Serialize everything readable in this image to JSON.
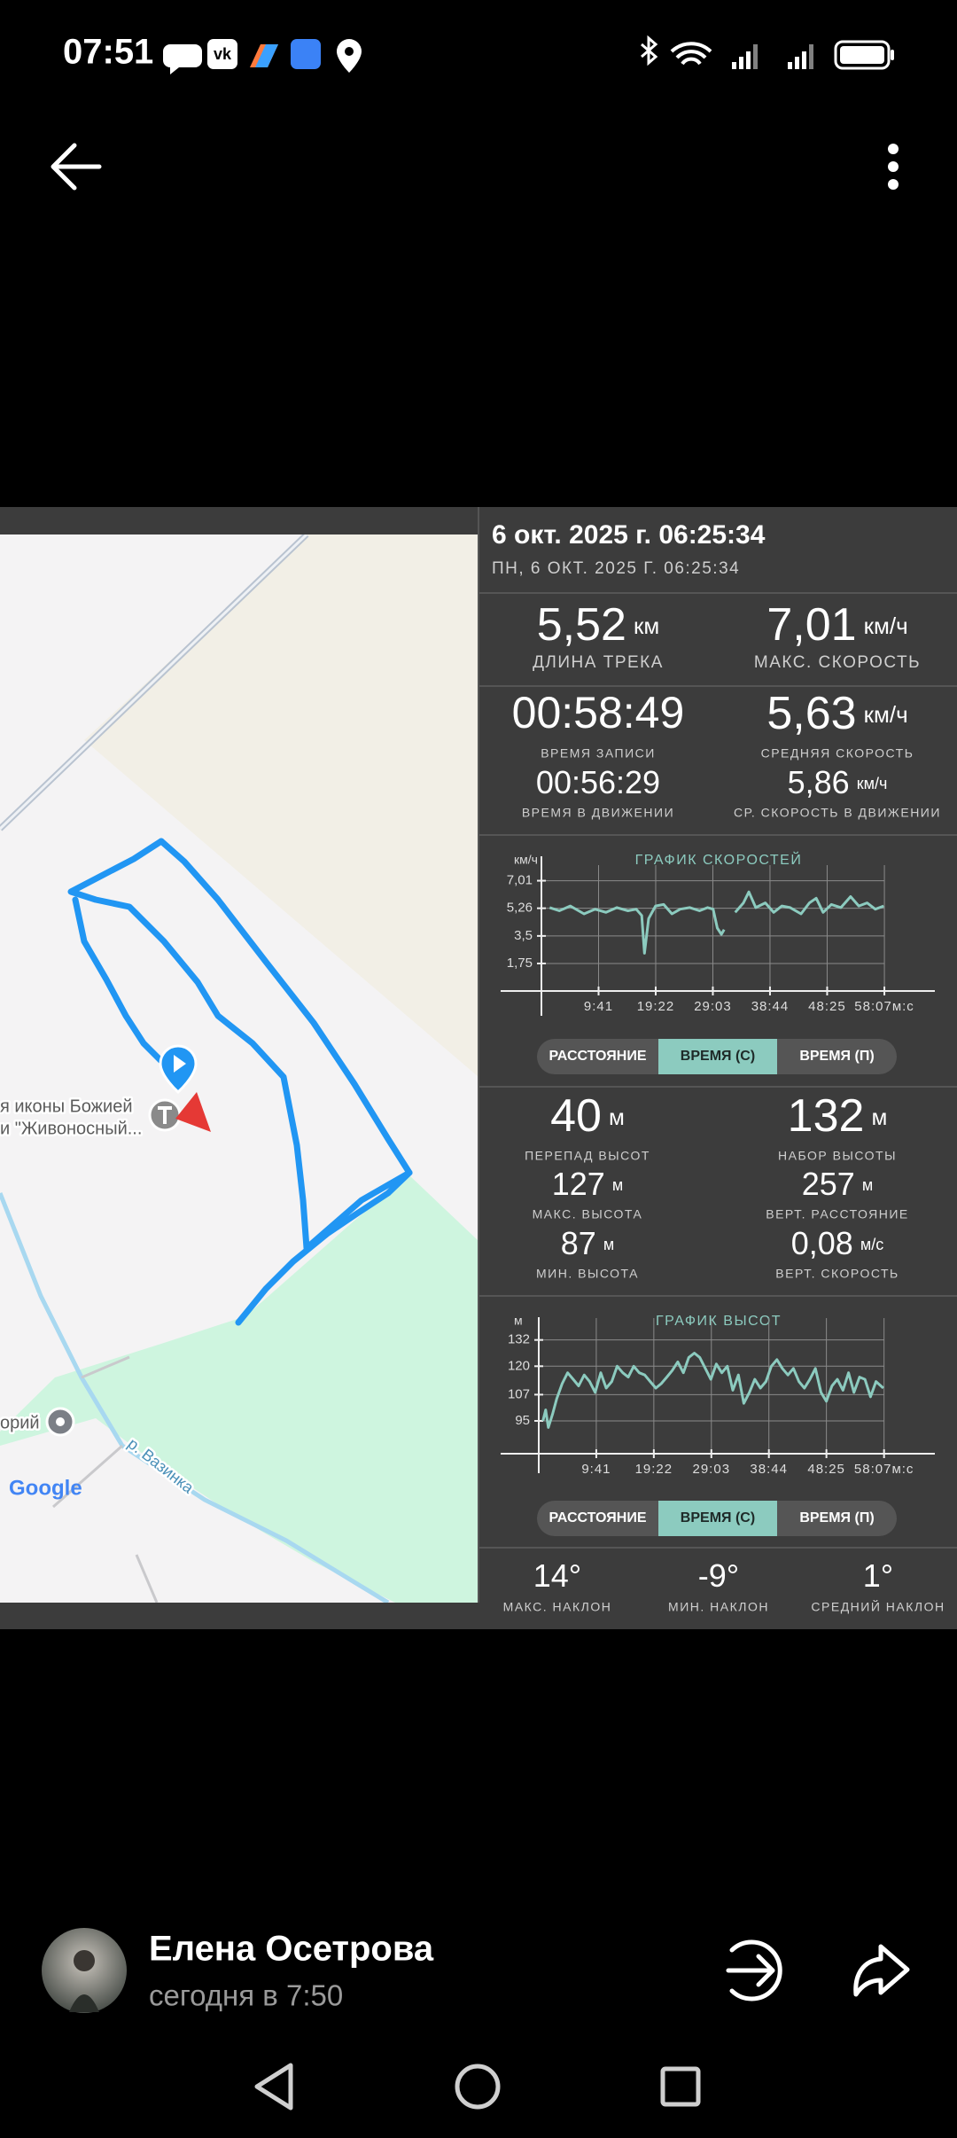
{
  "status_bar": {
    "time": "07:51"
  },
  "image": {
    "map": {
      "poi_label_lines": [
        "я иконы Божией",
        "и \"Живоносный..."
      ],
      "poi2_label": "орий",
      "river_label": "р. Вазинка",
      "logo": "Google"
    },
    "panel": {
      "datetime_title": "6 окт. 2025 г. 06:25:34",
      "datetime_subtitle": "ПН, 6 ОКТ. 2025 Г. 06:25:34",
      "stats": [
        {
          "value": "5,52",
          "unit": "км",
          "label": "ДЛИНА ТРЕКА"
        },
        {
          "value": "7,01",
          "unit": "км/ч",
          "label": "МАКС. СКОРОСТЬ"
        },
        {
          "value": "00:58:49",
          "label": "ВРЕМЯ ЗАПИСИ"
        },
        {
          "value": "5,63",
          "unit": "км/ч",
          "label": "СРЕДНЯЯ СКОРОСТЬ"
        },
        {
          "value": "00:56:29",
          "label": "ВРЕМЯ В ДВИЖЕНИИ"
        },
        {
          "value": "5,86",
          "unit": "км/ч",
          "label": "СР. СКОРОСТЬ В ДВИЖЕНИИ"
        },
        {
          "value": "40",
          "unit": "м",
          "label": "ПЕРЕПАД ВЫСОТ"
        },
        {
          "value": "132",
          "unit": "м",
          "label": "НАБОР ВЫСОТЫ"
        },
        {
          "value": "127",
          "unit": "м",
          "label": "МАКС. ВЫСОТА"
        },
        {
          "value": "257",
          "unit": "м",
          "label": "ВЕРТ. РАССТОЯНИЕ"
        },
        {
          "value": "87",
          "unit": "м",
          "label": "МИН. ВЫСОТА"
        },
        {
          "value": "0,08",
          "unit": "м/с",
          "label": "ВЕРТ. СКОРОСТЬ"
        },
        {
          "value": "14°",
          "label": "МАКС. НАКЛОН"
        },
        {
          "value": "-9°",
          "label": "МИН. НАКЛОН"
        },
        {
          "value": "1°",
          "label": "СРЕДНИЙ НАКЛОН"
        }
      ],
      "speed_chart": {
        "type": "line",
        "title": "ГРАФИК СКОРОСТЕЙ",
        "y_unit": "км/ч",
        "color": "#8ccbbf",
        "grid": true,
        "xlim": [
          0,
          4000
        ],
        "ylim": [
          0,
          8
        ],
        "xticks": [
          {
            "value": 581,
            "label": "9:41"
          },
          {
            "value": 1162,
            "label": "19:22"
          },
          {
            "value": 1743,
            "label": "29:03"
          },
          {
            "value": 2324,
            "label": "38:44"
          },
          {
            "value": 2905,
            "label": "48:25"
          },
          {
            "value": 3487,
            "label": "58:07м:с"
          }
        ],
        "yticks": [
          {
            "value": 1.75,
            "label": "1,75"
          },
          {
            "value": 3.5,
            "label": "3,5"
          },
          {
            "value": 5.26,
            "label": "5,26"
          },
          {
            "value": 7.01,
            "label": "7,01"
          }
        ],
        "x": [
          84,
          182,
          293,
          433,
          545,
          657,
          768,
          880,
          964,
          1020,
          1048,
          1090,
          1160,
          1243,
          1327,
          1411,
          1509,
          1607,
          1690,
          1746,
          1788,
          1830,
          1858,
          1914,
          1970,
          2054,
          2109,
          2179,
          2277,
          2361,
          2445,
          2529,
          2640,
          2724,
          2794,
          2864,
          2948,
          3045,
          3143,
          3227,
          3311,
          3395,
          3480
        ],
        "values": [
          5.3,
          5.1,
          5.4,
          4.9,
          5.2,
          5.0,
          5.3,
          5.1,
          5.2,
          4.8,
          2.4,
          4.6,
          5.4,
          5.5,
          4.9,
          5.2,
          5.3,
          5.1,
          5.3,
          5.2,
          4.0,
          3.6,
          3.9,
          null,
          5.0,
          5.6,
          6.3,
          5.3,
          5.6,
          5.0,
          5.4,
          5.3,
          4.9,
          5.6,
          5.9,
          5.0,
          5.5,
          5.3,
          6.0,
          5.4,
          5.6,
          5.2,
          5.4
        ]
      },
      "speed_toggle": {
        "options": [
          "РАССТОЯНИЕ",
          "ВРЕМЯ (С)",
          "ВРЕМЯ (П)"
        ],
        "active": 1
      },
      "altitude_chart": {
        "type": "line",
        "title": "ГРАФИК ВЫСОТ",
        "y_unit": "м",
        "color": "#8ccbbf",
        "grid": true,
        "xlim": [
          0,
          4000
        ],
        "ylim": [
          80,
          142
        ],
        "xticks": [
          {
            "value": 581,
            "label": "9:41"
          },
          {
            "value": 1162,
            "label": "19:22"
          },
          {
            "value": 1743,
            "label": "29:03"
          },
          {
            "value": 2324,
            "label": "38:44"
          },
          {
            "value": 2905,
            "label": "48:25"
          },
          {
            "value": 3487,
            "label": "58:07м:с"
          }
        ],
        "yticks": [
          95,
          107,
          120,
          132
        ],
        "x": [
          42,
          70,
          97,
          139,
          181,
          236,
          292,
          348,
          403,
          459,
          514,
          570,
          626,
          681,
          737,
          792,
          848,
          904,
          959,
          1015,
          1070,
          1126,
          1182,
          1237,
          1293,
          1348,
          1404,
          1460,
          1515,
          1571,
          1626,
          1682,
          1738,
          1793,
          1849,
          1904,
          1960,
          2016,
          2071,
          2127,
          2182,
          2238,
          2294,
          2349,
          2405,
          2460,
          2516,
          2572,
          2627,
          2683,
          2738,
          2794,
          2850,
          2905,
          2961,
          3016,
          3072,
          3128,
          3183,
          3239,
          3294,
          3350,
          3406,
          3480
        ],
        "values": [
          95,
          100,
          92,
          98,
          105,
          112,
          117,
          114,
          111,
          116,
          113,
          108,
          117,
          110,
          113,
          120,
          117,
          115,
          120,
          117,
          116,
          113,
          110,
          112,
          115,
          118,
          122,
          117,
          124,
          126,
          124,
          119,
          114,
          121,
          117,
          120,
          109,
          116,
          103,
          108,
          114,
          110,
          113,
          120,
          123,
          119,
          116,
          119,
          113,
          110,
          114,
          119,
          108,
          104,
          111,
          114,
          109,
          117,
          108,
          115,
          114,
          106,
          113,
          110
        ]
      },
      "altitude_toggle": {
        "options": [
          "РАССТОЯНИЕ",
          "ВРЕМЯ (С)",
          "ВРЕМЯ (П)"
        ],
        "active": 1
      }
    }
  },
  "post": {
    "author": "Елена Осетрова",
    "time": "сегодня в 7:50"
  }
}
